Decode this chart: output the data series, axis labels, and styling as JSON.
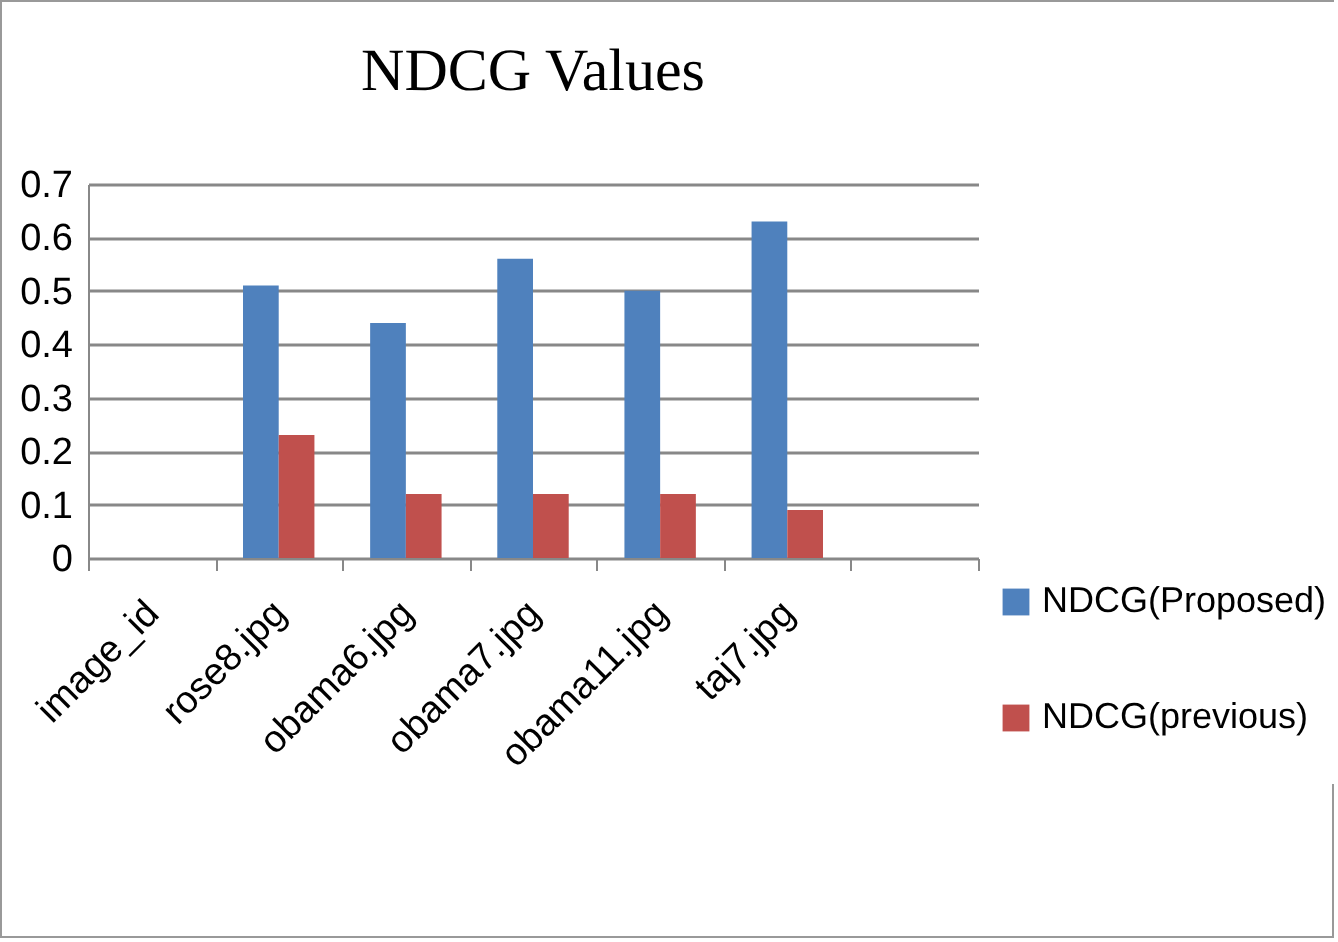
{
  "chart_data": {
    "type": "bar",
    "title": "NDCG Values",
    "categories": [
      "image_id",
      "rose8.jpg",
      "obama6.jpg",
      "obama7.jpg",
      "obama11.jpg",
      "taj7.jpg",
      null
    ],
    "series": [
      {
        "name": "NDCG(Proposed)",
        "color": "#4f81bd",
        "values": [
          null,
          0.51,
          0.44,
          0.56,
          0.5,
          0.63,
          null
        ]
      },
      {
        "name": "NDCG(previous)",
        "color": "#c0504d",
        "values": [
          null,
          0.23,
          0.12,
          0.12,
          0.12,
          0.09,
          null
        ]
      }
    ],
    "ylim": [
      0,
      0.7
    ],
    "yticks": [
      0,
      0.1,
      0.2,
      0.3,
      0.4,
      0.5,
      0.6,
      0.7
    ],
    "grid": "y",
    "legend": "bottom right"
  }
}
